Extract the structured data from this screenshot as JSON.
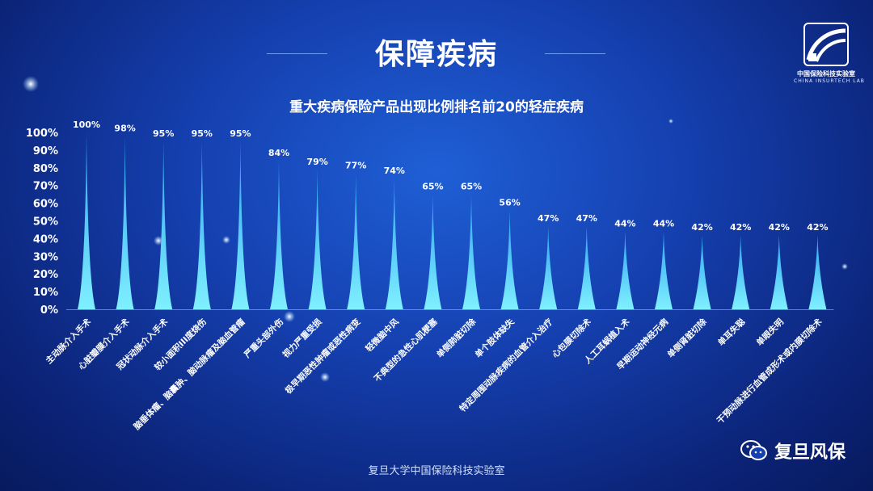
{
  "page": {
    "title": "保障疾病",
    "logo_cn": "中国保险科技实验室",
    "logo_en": "CHINA INSURTECH LAB",
    "footer": "复旦大学中国保险科技实验室",
    "wechat_name": "复旦风保",
    "wechat_icon": "wechat-icon"
  },
  "chart_data": {
    "type": "bar",
    "title": "重大疾病保险产品出现比例排名前20的轻症疾病",
    "xlabel": "",
    "ylabel": "",
    "ylim": [
      0,
      100
    ],
    "yticks": [
      "0%",
      "10%",
      "20%",
      "30%",
      "40%",
      "50%",
      "60%",
      "70%",
      "80%",
      "90%",
      "100%"
    ],
    "categories": [
      "主动脉介入手术",
      "心脏瓣膜介入手术",
      "冠状动脉介入手术",
      "较小面积III度烧伤",
      "脑垂体瘤、脑囊肿、脑动脉瘤及脑血管瘤",
      "严重头部外伤",
      "视力严重受损",
      "极早期恶性肿瘤或恶性病变",
      "轻微脑中风",
      "不典型的急性心肌梗塞",
      "单侧肺脏切除",
      "单个肢体缺失",
      "特定周围动脉疾病的血管介入治疗",
      "心包膜切除术",
      "人工耳蜗植入术",
      "早期运动神经元病",
      "单侧肾脏切除",
      "单耳失聪",
      "单眼失明",
      "干预动脉进行血管成形术或内膜切除术"
    ],
    "values": [
      100,
      98,
      95,
      95,
      95,
      84,
      79,
      77,
      74,
      65,
      65,
      56,
      47,
      47,
      44,
      44,
      42,
      42,
      42,
      42
    ],
    "value_labels": [
      "100%",
      "98%",
      "95%",
      "95%",
      "95%",
      "84%",
      "79%",
      "77%",
      "74%",
      "65%",
      "65%",
      "56%",
      "47%",
      "47%",
      "44%",
      "44%",
      "42%",
      "42%",
      "42%",
      "42%"
    ],
    "colors": {
      "bar_top": "#2ea0f0",
      "bar_bottom": "#7ff0ff",
      "background": "#1540b0"
    },
    "grid": false,
    "legend": "none"
  }
}
